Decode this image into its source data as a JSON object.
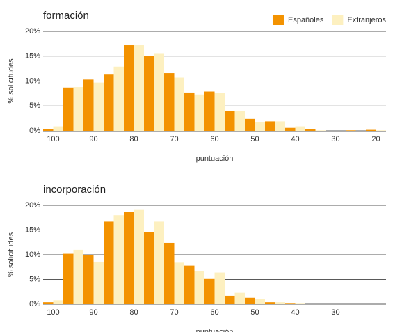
{
  "chart_data": [
    {
      "type": "bar",
      "title": "formación",
      "x_label": "puntuación",
      "y_label": "% solicitudes",
      "categories": [
        "100",
        null,
        "90",
        null,
        "80",
        null,
        "70",
        null,
        "60",
        null,
        "50",
        null,
        "40",
        null,
        "30",
        null,
        "20"
      ],
      "series": [
        {
          "name": "Españoles",
          "color": "#f39200",
          "values": [
            0.3,
            8.7,
            10.3,
            11.3,
            17.2,
            15.1,
            11.6,
            7.7,
            7.9,
            4.0,
            2.4,
            1.9,
            0.6,
            0.3,
            0,
            0.1,
            0.2
          ]
        },
        {
          "name": "Extranjeros",
          "color": "#fdf0c0",
          "values": [
            0.9,
            8.8,
            9.7,
            12.9,
            17.2,
            15.6,
            10.7,
            7.3,
            7.6,
            4.0,
            1.7,
            1.9,
            0.9,
            0.1,
            0,
            0,
            0.1
          ]
        }
      ],
      "ylim": [
        0,
        20
      ],
      "yticks": [
        {
          "value": 0,
          "label": "0%"
        },
        {
          "value": 5,
          "label": "5%"
        },
        {
          "value": 10,
          "label": "10%"
        },
        {
          "value": 15,
          "label": "15%"
        },
        {
          "value": 20,
          "label": "20%"
        }
      ],
      "grid": true,
      "legend": "upper right"
    },
    {
      "type": "bar",
      "title": "incorporación",
      "x_label": "puntuación",
      "y_label": "% solicitudes",
      "categories": [
        "100",
        null,
        "90",
        null,
        "80",
        null,
        "70",
        null,
        "60",
        null,
        "50",
        null,
        "40",
        null,
        "30",
        null,
        null
      ],
      "series": [
        {
          "name": "Españoles",
          "color": "#f39200",
          "values": [
            0.4,
            10.2,
            9.9,
            16.7,
            18.7,
            14.6,
            12.4,
            7.8,
            5.1,
            1.7,
            1.3,
            0.4,
            0.1,
            0,
            0,
            0,
            0
          ]
        },
        {
          "name": "Extranjeros",
          "color": "#fdf0c0",
          "values": [
            0.8,
            11.0,
            8.6,
            18.0,
            19.2,
            16.7,
            8.4,
            6.7,
            6.4,
            2.3,
            1.1,
            0.4,
            0.1,
            0,
            0,
            0,
            0
          ]
        }
      ],
      "ylim": [
        0,
        20
      ],
      "yticks": [
        {
          "value": 0,
          "label": "0%"
        },
        {
          "value": 5,
          "label": "5%"
        },
        {
          "value": 10,
          "label": "10%"
        },
        {
          "value": 15,
          "label": "15%"
        },
        {
          "value": 20,
          "label": "20%"
        }
      ],
      "grid": true
    }
  ]
}
